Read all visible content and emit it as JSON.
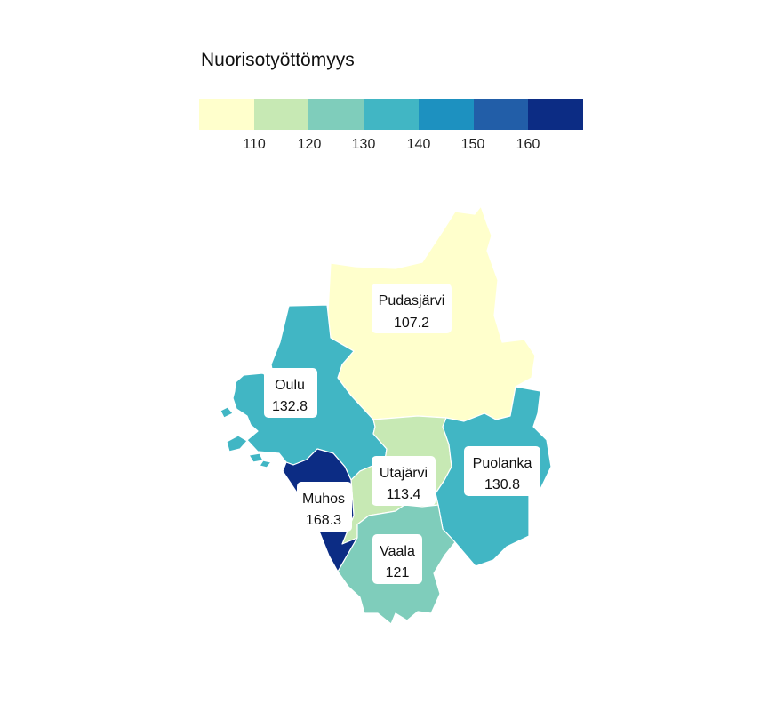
{
  "legend": {
    "title": "Nuorisotyöttömyys",
    "colors": [
      "#ffffcc",
      "#c7e9b4",
      "#7fcdbb",
      "#41b6c4",
      "#1d91c0",
      "#225ea8",
      "#0c2c84"
    ],
    "ticks": [
      "110",
      "120",
      "130",
      "140",
      "150",
      "160"
    ]
  },
  "regions": [
    {
      "name": "Pudasjärvi",
      "value": "107.2",
      "color": "#ffffcc"
    },
    {
      "name": "Oulu",
      "value": "132.8",
      "color": "#41b6c4"
    },
    {
      "name": "Utajärvi",
      "value": "113.4",
      "color": "#c7e9b4"
    },
    {
      "name": "Puolanka",
      "value": "130.8",
      "color": "#41b6c4"
    },
    {
      "name": "Muhos",
      "value": "168.3",
      "color": "#0c2c84"
    },
    {
      "name": "Vaala",
      "value": "121",
      "color": "#7fcdbb"
    }
  ]
}
